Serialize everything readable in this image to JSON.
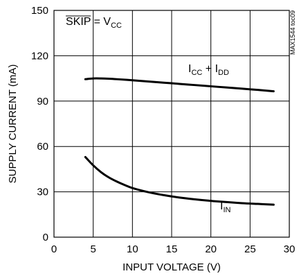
{
  "chart_data": {
    "type": "line",
    "title": "",
    "xlabel": "INPUT VOLTAGE (V)",
    "ylabel": "SUPPLY CURRENT (mA)",
    "xlim": [
      0,
      30
    ],
    "ylim": [
      0,
      150
    ],
    "xticks": [
      "0",
      "5",
      "10",
      "15",
      "20",
      "25",
      "30"
    ],
    "yticks": [
      "0",
      "30",
      "60",
      "90",
      "120",
      "150"
    ],
    "grid": true,
    "legend": "none",
    "annotations": {
      "condition": {
        "overline": "SKIP",
        "eq": " = V",
        "sub": "CC"
      },
      "series_icc_idd": {
        "a": "I",
        "a_sub": "CC",
        "mid": " + I",
        "b_sub": "DD"
      },
      "series_iin": {
        "a": "I",
        "a_sub": "IN"
      },
      "side_code": "MAX1544 toc09"
    },
    "series": [
      {
        "name": "ICC + IDD",
        "x": [
          4,
          5,
          6,
          7,
          8,
          10,
          12,
          14,
          16,
          18,
          20,
          22,
          24,
          26,
          28
        ],
        "y": [
          104.5,
          105,
          105,
          104.8,
          104.5,
          103.8,
          103,
          102.2,
          101.4,
          100.6,
          99.8,
          99,
          98.2,
          97.4,
          96.5
        ]
      },
      {
        "name": "IIN",
        "x": [
          4,
          5,
          6,
          7,
          8,
          9,
          10,
          12,
          14,
          16,
          18,
          20,
          22,
          24,
          26,
          28
        ],
        "y": [
          53,
          47.5,
          43,
          39.5,
          36.8,
          34.5,
          32.5,
          29.8,
          27.8,
          26.2,
          25,
          24,
          23.2,
          22.5,
          22,
          21.5
        ]
      }
    ]
  }
}
